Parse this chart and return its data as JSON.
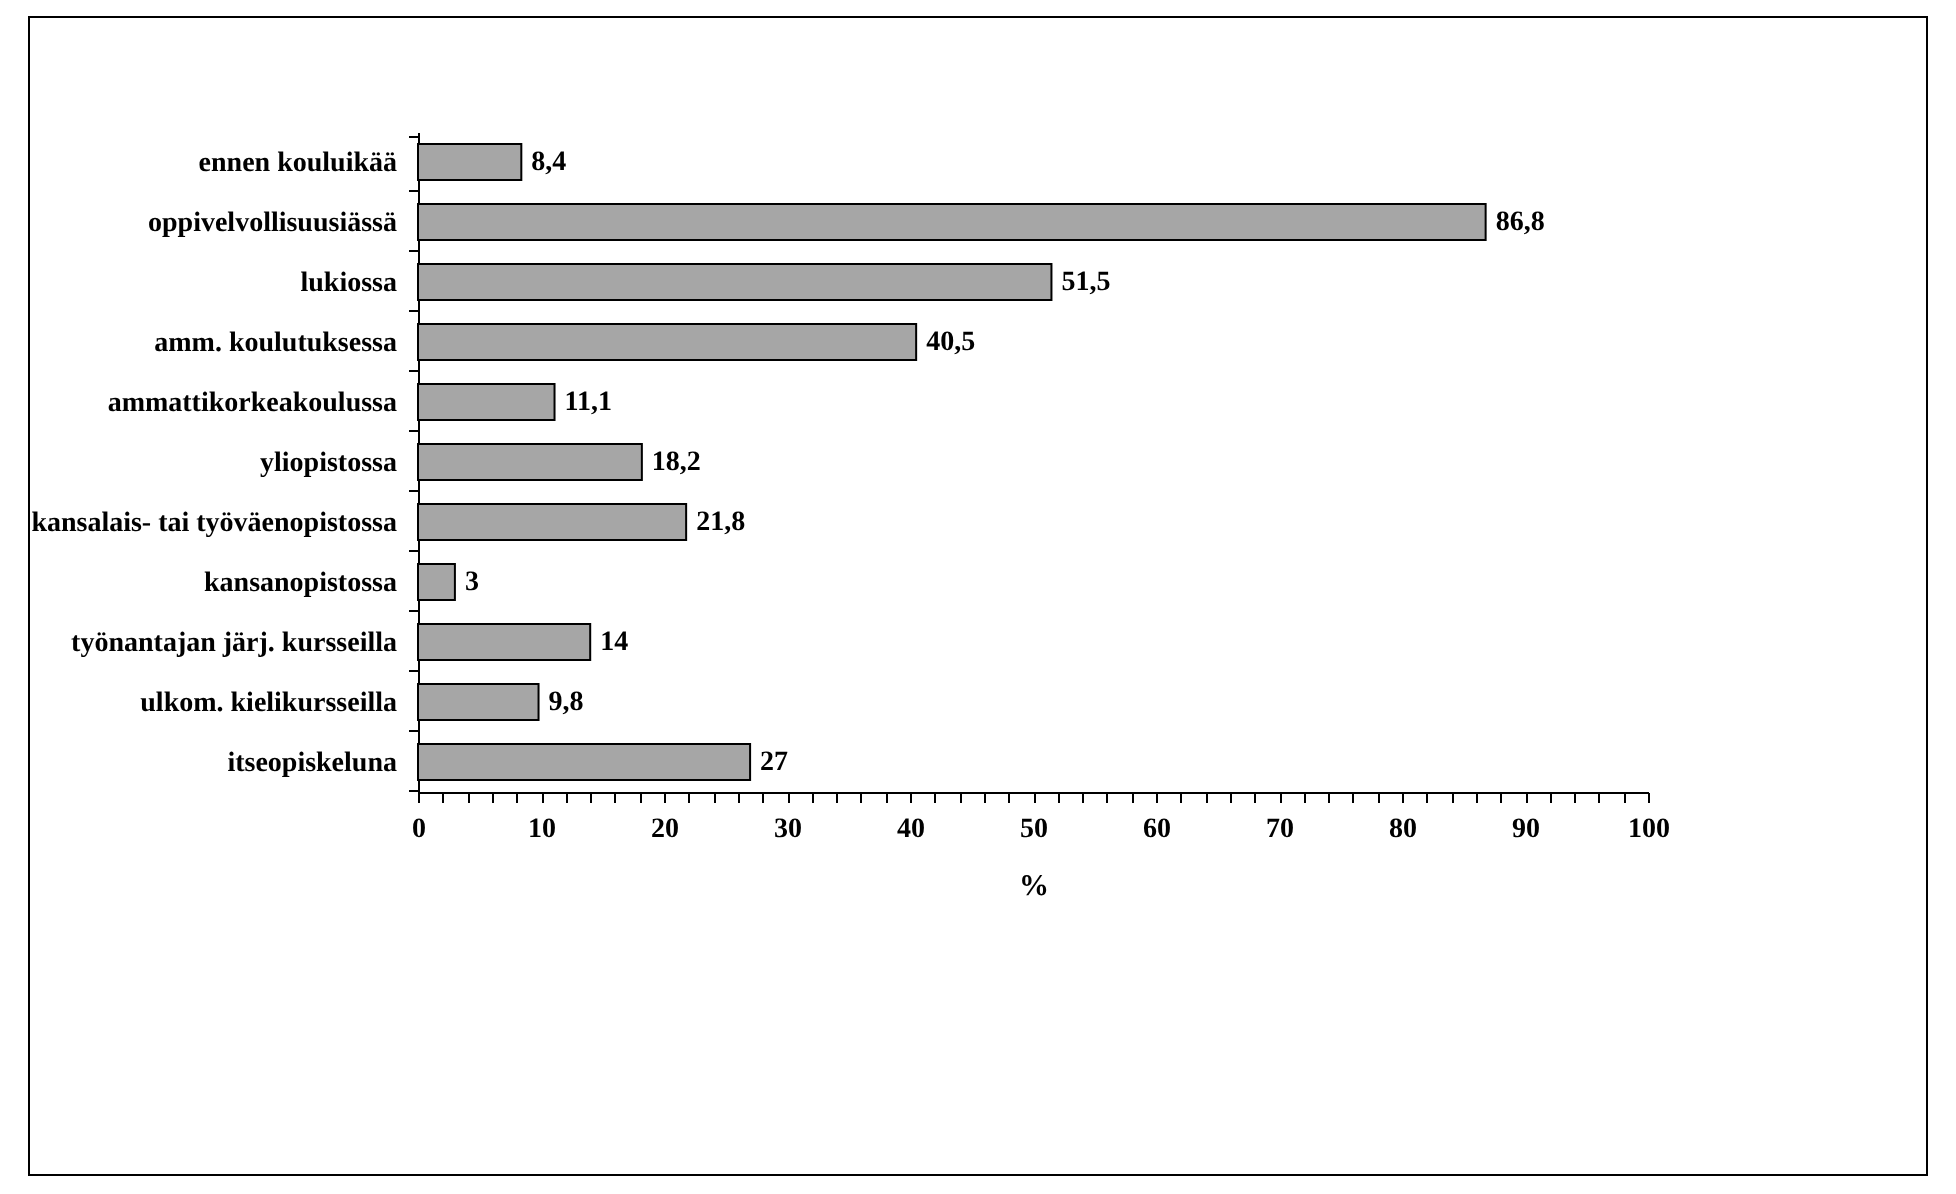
{
  "chart_data": {
    "type": "bar",
    "orientation": "horizontal",
    "xlabel": "%",
    "categories": [
      "ennen kouluikää",
      "oppivelvollisuusiässä",
      "lukiossa",
      "amm. koulutuksessa",
      "ammattikorkeakoulussa",
      "yliopistossa",
      "kansalais- tai työväenopistossa",
      "kansanopistossa",
      "työnantajan järj. kursseilla",
      "ulkom. kielikursseilla",
      "itseopiskeluna"
    ],
    "values": [
      8.4,
      86.8,
      51.5,
      40.5,
      11.1,
      18.2,
      21.8,
      3,
      14,
      9.8,
      27
    ],
    "value_labels": [
      "8,4",
      "86,8",
      "51,5",
      "40,5",
      "11,1",
      "18,2",
      "21,8",
      "3",
      "14",
      "9,8",
      "27"
    ],
    "color": "#a6a6a6",
    "xlim": [
      0,
      100
    ],
    "xticks": [
      0,
      {
        "value": 2,
        "label": null
      },
      {
        "value": 4,
        "label": null
      },
      {
        "value": 6,
        "label": null
      },
      {
        "value": 8,
        "label": null
      },
      10,
      {
        "value": 12,
        "label": null
      },
      {
        "value": 14,
        "label": null
      },
      {
        "value": 16,
        "label": null
      },
      {
        "value": 18,
        "label": null
      },
      20,
      {
        "value": 22,
        "label": null
      },
      {
        "value": 24,
        "label": null
      },
      {
        "value": 26,
        "label": null
      },
      {
        "value": 28,
        "label": null
      },
      30,
      {
        "value": 32,
        "label": null
      },
      {
        "value": 34,
        "label": null
      },
      {
        "value": 36,
        "label": null
      },
      {
        "value": 38,
        "label": null
      },
      40,
      {
        "value": 42,
        "label": null
      },
      {
        "value": 44,
        "label": null
      },
      {
        "value": 46,
        "label": null
      },
      {
        "value": 48,
        "label": null
      },
      50,
      {
        "value": 52,
        "label": null
      },
      {
        "value": 54,
        "label": null
      },
      {
        "value": 56,
        "label": null
      },
      {
        "value": 58,
        "label": null
      },
      60,
      {
        "value": 62,
        "label": null
      },
      {
        "value": 64,
        "label": null
      },
      {
        "value": 66,
        "label": null
      },
      {
        "value": 68,
        "label": null
      },
      70,
      {
        "value": 72,
        "label": null
      },
      {
        "value": 74,
        "label": null
      },
      {
        "value": 76,
        "label": null
      },
      {
        "value": 78,
        "label": null
      },
      80,
      {
        "value": 82,
        "label": null
      },
      {
        "value": 84,
        "label": null
      },
      {
        "value": 86,
        "label": null
      },
      {
        "value": 88,
        "label": null
      },
      90,
      {
        "value": 92,
        "label": null
      },
      {
        "value": 94,
        "label": null
      },
      {
        "value": 96,
        "label": null
      },
      {
        "value": 98,
        "label": null
      },
      100
    ]
  }
}
